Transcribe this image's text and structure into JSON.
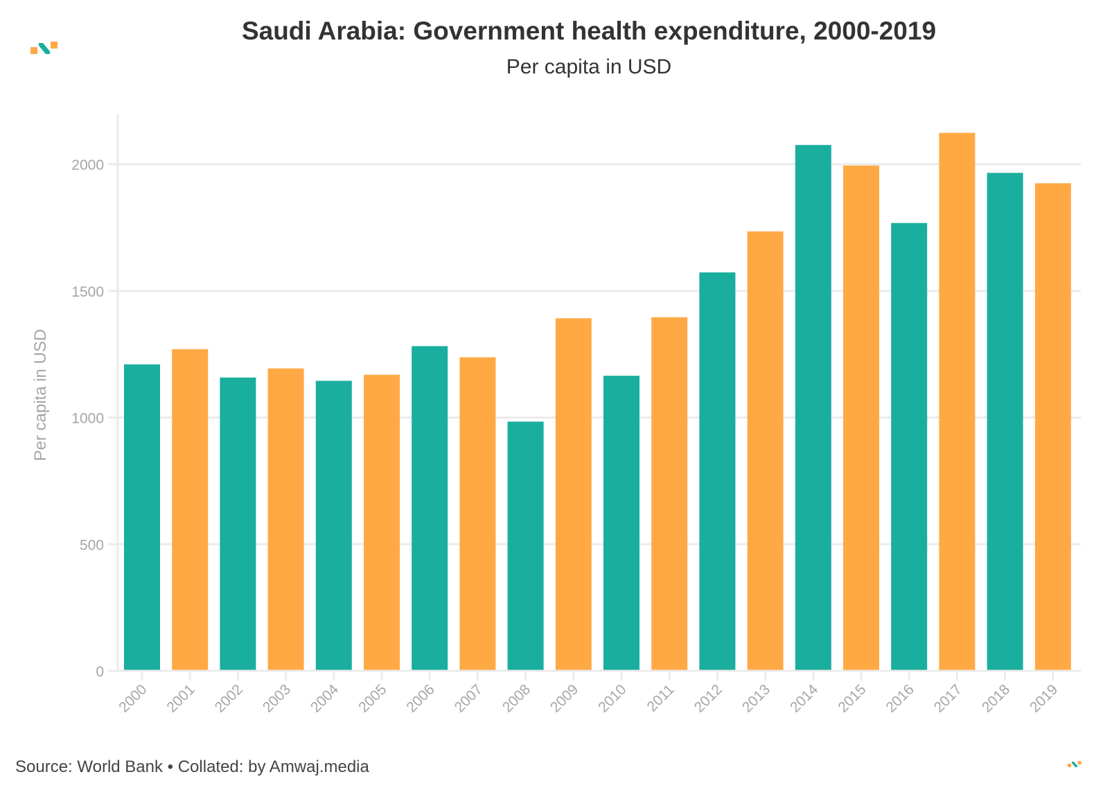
{
  "header": {
    "title": "Saudi Arabia: Government health expenditure, 2000-2019",
    "subtitle": "Per capita in USD"
  },
  "footer": {
    "source_text": "Source: World Bank • Collated: by Amwaj.media"
  },
  "logos": {
    "top_left": "amwaj-logo-icon",
    "bottom_right": "amwaj-logo-icon"
  },
  "colors": {
    "teal": "#1aae9f",
    "orange": "#ffa945",
    "grid": "#ebebeb",
    "tick_text": "#a6a6a6"
  },
  "chart_data": {
    "type": "bar",
    "title": "Saudi Arabia: Government health expenditure, 2000-2019",
    "subtitle": "Per capita in USD",
    "xlabel": "",
    "ylabel": "Per capita in USD",
    "ylim": [
      0,
      2200
    ],
    "yticks": [
      0,
      500,
      1000,
      1500,
      2000
    ],
    "grid": true,
    "legend": "none",
    "categories": [
      "2000",
      "2001",
      "2002",
      "2003",
      "2004",
      "2005",
      "2006",
      "2007",
      "2008",
      "2009",
      "2010",
      "2011",
      "2012",
      "2013",
      "2014",
      "2015",
      "2016",
      "2017",
      "2018",
      "2019"
    ],
    "values": [
      1210,
      1270,
      1158,
      1194,
      1145,
      1169,
      1282,
      1238,
      984,
      1392,
      1165,
      1396,
      1573,
      1735,
      2076,
      1995,
      1768,
      2124,
      1966,
      1925
    ],
    "bar_colors": [
      "teal",
      "orange",
      "teal",
      "orange",
      "teal",
      "orange",
      "teal",
      "orange",
      "teal",
      "orange",
      "teal",
      "orange",
      "teal",
      "orange",
      "teal",
      "orange",
      "teal",
      "orange",
      "teal",
      "orange"
    ]
  }
}
